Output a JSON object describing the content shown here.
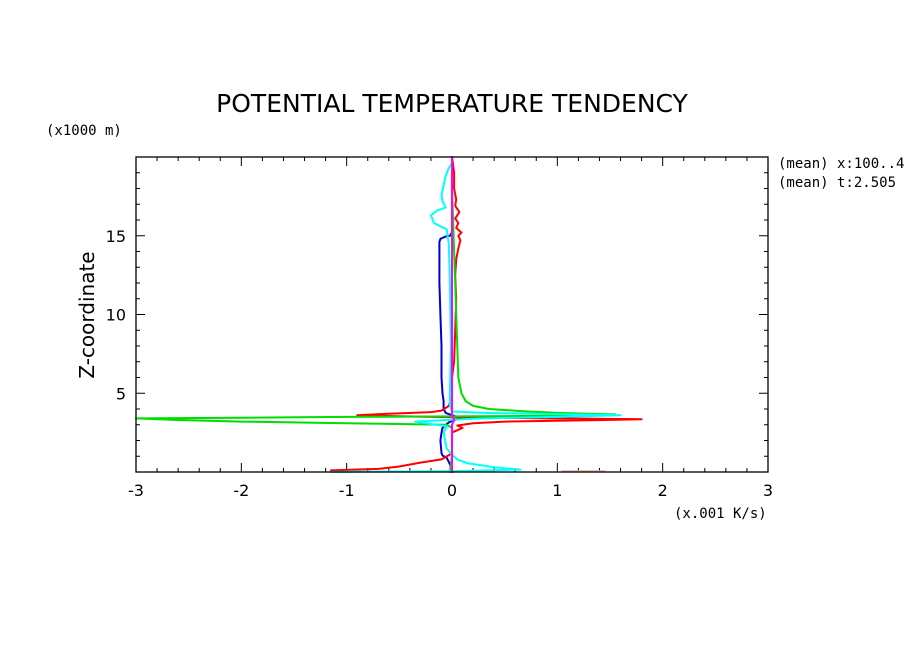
{
  "chart_data": {
    "type": "line",
    "title": "POTENTIAL TEMPERATURE TENDENCY",
    "xlabel": "(x.001 K/s)",
    "ylabel": "Z-coordinate",
    "y_unit_label": "(x1000 m)",
    "annotations": [
      "(mean) x:100..4",
      "(mean) t:2.505"
    ],
    "xlim": [
      -3,
      3
    ],
    "ylim": [
      0,
      20
    ],
    "x_ticks": [
      -3,
      -2,
      -1,
      0,
      1,
      2,
      3
    ],
    "x_tick_labels": [
      "-3",
      "-2",
      "-1",
      "0",
      "1",
      "2",
      "3"
    ],
    "y_ticks": [
      5,
      10,
      15
    ],
    "y_tick_labels": [
      "5",
      "10",
      "15"
    ],
    "grid": false,
    "series": [
      {
        "color": "#0000cc",
        "points": [
          [
            0.0,
            0.0
          ],
          [
            -0.02,
            0.5
          ],
          [
            -0.05,
            0.9
          ],
          [
            -0.09,
            1.05
          ],
          [
            -0.1,
            1.2
          ],
          [
            -0.11,
            2.0
          ],
          [
            -0.1,
            2.5
          ],
          [
            -0.09,
            2.8
          ],
          [
            -0.06,
            3.0
          ],
          [
            -0.03,
            3.15
          ],
          [
            0.02,
            3.3
          ],
          [
            0.08,
            3.4
          ],
          [
            0.05,
            3.5
          ],
          [
            -0.02,
            3.65
          ],
          [
            -0.06,
            3.75
          ],
          [
            -0.08,
            4.0
          ],
          [
            -0.08,
            4.5
          ],
          [
            -0.09,
            5.0
          ],
          [
            -0.1,
            6.0
          ],
          [
            -0.1,
            8.0
          ],
          [
            -0.11,
            10.0
          ],
          [
            -0.12,
            12.0
          ],
          [
            -0.12,
            13.5
          ],
          [
            -0.12,
            14.6
          ],
          [
            -0.11,
            14.8
          ],
          [
            -0.06,
            14.95
          ],
          [
            -0.02,
            15.0
          ],
          [
            0.0,
            15.2
          ],
          [
            0.0,
            20.0
          ]
        ]
      },
      {
        "color": "#ff0000",
        "points": [
          [
            -1.15,
            0.1
          ],
          [
            -0.7,
            0.2
          ],
          [
            -0.5,
            0.35
          ],
          [
            -0.3,
            0.6
          ],
          [
            -0.1,
            0.8
          ],
          [
            -0.06,
            0.95
          ],
          [
            0.0,
            1.2
          ],
          [
            0.0,
            2.5
          ],
          [
            0.1,
            2.8
          ],
          [
            0.05,
            2.95
          ],
          [
            0.2,
            3.1
          ],
          [
            0.5,
            3.2
          ],
          [
            1.0,
            3.25
          ],
          [
            1.45,
            3.3
          ],
          [
            1.8,
            3.35
          ],
          [
            1.0,
            3.4
          ],
          [
            0.3,
            3.45
          ],
          [
            -0.2,
            3.5
          ],
          [
            -0.9,
            3.6
          ],
          [
            -0.6,
            3.7
          ],
          [
            -0.2,
            3.8
          ],
          [
            -0.1,
            3.9
          ],
          [
            -0.03,
            4.2
          ],
          [
            0.0,
            4.8
          ],
          [
            0.0,
            6.0
          ],
          [
            0.02,
            7.0
          ],
          [
            0.03,
            9.0
          ],
          [
            0.04,
            11.0
          ],
          [
            0.03,
            12.5
          ],
          [
            0.04,
            13.5
          ],
          [
            0.06,
            14.2
          ],
          [
            0.08,
            14.7
          ],
          [
            0.06,
            15.0
          ],
          [
            0.09,
            15.2
          ],
          [
            0.04,
            15.5
          ],
          [
            0.06,
            15.8
          ],
          [
            0.03,
            16.1
          ],
          [
            0.07,
            16.5
          ],
          [
            0.03,
            16.9
          ],
          [
            0.04,
            17.3
          ],
          [
            0.02,
            18.0
          ],
          [
            0.02,
            19.0
          ],
          [
            0.0,
            20.0
          ]
        ]
      },
      {
        "color": "#00dd00",
        "points": [
          [
            -0.02,
            0.0
          ],
          [
            0.0,
            1.0
          ],
          [
            0.0,
            2.8
          ],
          [
            -0.05,
            3.0
          ],
          [
            -1.0,
            3.1
          ],
          [
            -2.0,
            3.2
          ],
          [
            -2.6,
            3.3
          ],
          [
            -3.0,
            3.4
          ],
          [
            -2.0,
            3.45
          ],
          [
            -1.0,
            3.5
          ],
          [
            0.5,
            3.55
          ],
          [
            1.5,
            3.6
          ],
          [
            1.55,
            3.65
          ],
          [
            1.0,
            3.75
          ],
          [
            0.7,
            3.85
          ],
          [
            0.35,
            4.0
          ],
          [
            0.2,
            4.2
          ],
          [
            0.13,
            4.5
          ],
          [
            0.09,
            5.0
          ],
          [
            0.06,
            6.0
          ],
          [
            0.05,
            8.0
          ],
          [
            0.04,
            10.0
          ],
          [
            0.03,
            12.0
          ],
          [
            0.02,
            14.0
          ],
          [
            0.01,
            16.0
          ],
          [
            0.0,
            18.0
          ],
          [
            0.0,
            20.0
          ]
        ]
      },
      {
        "color": "#00ffff",
        "points": [
          [
            -1.15,
            0.0
          ],
          [
            0.0,
            0.05
          ],
          [
            0.65,
            0.15
          ],
          [
            0.4,
            0.3
          ],
          [
            0.15,
            0.55
          ],
          [
            0.05,
            0.8
          ],
          [
            0.0,
            1.1
          ],
          [
            -0.05,
            1.5
          ],
          [
            -0.08,
            2.5
          ],
          [
            -0.05,
            2.9
          ],
          [
            -0.25,
            3.1
          ],
          [
            -0.35,
            3.2
          ],
          [
            -0.05,
            3.3
          ],
          [
            0.3,
            3.4
          ],
          [
            1.0,
            3.5
          ],
          [
            1.6,
            3.6
          ],
          [
            1.2,
            3.65
          ],
          [
            0.3,
            3.75
          ],
          [
            0.0,
            3.85
          ],
          [
            -0.02,
            4.2
          ],
          [
            -0.02,
            5.0
          ],
          [
            -0.01,
            8.0
          ],
          [
            -0.02,
            12.0
          ],
          [
            -0.03,
            14.5
          ],
          [
            -0.05,
            15.4
          ],
          [
            -0.17,
            15.8
          ],
          [
            -0.2,
            16.3
          ],
          [
            -0.14,
            16.6
          ],
          [
            -0.06,
            16.8
          ],
          [
            -0.09,
            17.2
          ],
          [
            -0.1,
            17.6
          ],
          [
            -0.08,
            18.2
          ],
          [
            -0.06,
            18.8
          ],
          [
            -0.03,
            19.3
          ],
          [
            0.0,
            19.6
          ]
        ]
      },
      {
        "color": "#ff00ff",
        "points": [
          [
            0.0,
            0.0
          ],
          [
            0.0,
            3.0
          ],
          [
            0.02,
            3.3
          ],
          [
            0.0,
            3.6
          ],
          [
            0.0,
            20.0
          ]
        ]
      },
      {
        "color": "#ffaaaa",
        "points": [
          [
            1.05,
            0.05
          ],
          [
            1.45,
            0.05
          ]
        ]
      }
    ]
  }
}
